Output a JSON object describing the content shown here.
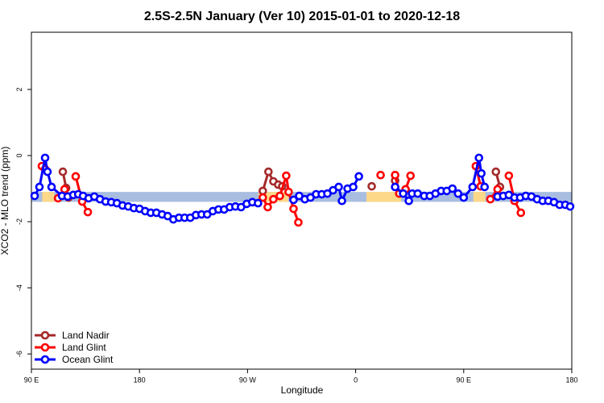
{
  "chart_data": {
    "type": "line",
    "title": "2.5S-2.5N January (Ver 10)   2015-01-01 to 2020-12-18",
    "xlabel": "Longitude",
    "ylabel": "XCO2 - MLO trend (ppm)",
    "xlim": [
      90,
      540
    ],
    "ylim": [
      -6.46,
      3.73
    ],
    "xticks": [
      {
        "value": 90,
        "label": "90 E"
      },
      180,
      {
        "value": 270,
        "label": "90 W"
      },
      {
        "value": 360,
        "label": "0"
      },
      {
        "value": 450,
        "label": "90 E"
      },
      {
        "value": 540,
        "label": "180"
      }
    ],
    "yticks": [
      2,
      0,
      -2,
      -4,
      -6
    ],
    "legend": "bottom-left",
    "bands": [
      {
        "color": "#a8bde0",
        "x": [
          90,
          540
        ],
        "y": [
          -1.4,
          -1.1
        ]
      },
      {
        "color": "#fdd888",
        "x": [
          99,
          109
        ],
        "y": [
          -1.4,
          -1.1
        ]
      },
      {
        "color": "#fdd888",
        "x": [
          279,
          304
        ],
        "y": [
          -1.4,
          -1.1
        ]
      },
      {
        "color": "#fdd888",
        "x": [
          369,
          398
        ],
        "y": [
          -1.4,
          -1.1
        ]
      },
      {
        "color": "#fdd888",
        "x": [
          458,
          468
        ],
        "y": [
          -1.4,
          -1.1
        ]
      }
    ],
    "series": [
      {
        "name": "Land Nadir",
        "color": "#a52a2a",
        "x": [
          116.2,
          118.9,
          120.9,
          null,
          282.7,
          287.4,
          291.5,
          295.5,
          298.9,
          null,
          373.4,
          null,
          392.9,
          null,
          476.8,
          480.2
        ],
        "values": [
          -0.49,
          -0.98,
          -1.27,
          null,
          -1.07,
          -0.49,
          -0.78,
          -0.88,
          -0.93,
          null,
          -0.93,
          null,
          -0.76,
          null,
          -0.49,
          -0.95
        ]
      },
      {
        "name": "Land Glint",
        "color": "#ff0000",
        "x": [
          98.7,
          101.4,
          null,
          112.2,
          117.6,
          null,
          126.9,
          132.3,
          137.0,
          null,
          282.7,
          286.8,
          291.5,
          296.9,
          302.2,
          304.2,
          308.3,
          312.3,
          null,
          380.8,
          null,
          392.9,
          396.3,
          401.6,
          405.7,
          null,
          460.1,
          464.1,
          null,
          472.2,
          478.2,
          null,
          487.6,
          492.3,
          497.6
        ],
        "values": [
          -0.32,
          -0.41,
          null,
          -1.29,
          -1.02,
          null,
          -0.63,
          -1.39,
          -1.71,
          null,
          -1.27,
          -1.56,
          -1.32,
          -1.22,
          -0.61,
          -1.1,
          -1.61,
          -2.02,
          null,
          -0.59,
          null,
          -0.59,
          -1.15,
          -1.02,
          -0.61,
          null,
          -0.32,
          -0.93,
          null,
          -1.32,
          -1.02,
          null,
          -0.61,
          -1.37,
          -1.73
        ]
      },
      {
        "name": "Ocean Glint",
        "color": "#0000ff",
        "x": [
          92.7,
          96.7,
          101.4,
          103.4,
          106.8,
          115.5,
          120.2,
          124.9,
          129.0,
          133.0,
          137.7,
          142.4,
          147.1,
          151.8,
          156.5,
          161.2,
          165.9,
          170.6,
          175.3,
          180.0,
          184.7,
          189.4,
          194.1,
          198.8,
          203.5,
          208.2,
          212.9,
          217.6,
          222.3,
          227.0,
          231.7,
          236.4,
          241.1,
          245.8,
          250.5,
          255.2,
          259.9,
          264.6,
          269.3,
          274.0,
          278.7,
          null,
          308.3,
          313.0,
          317.7,
          322.4,
          327.1,
          331.8,
          336.5,
          341.2,
          345.9,
          348.6,
          353.3,
          358.0,
          362.7,
          null,
          392.9,
          399.6,
          404.3,
          407.0,
          411.7,
          417.1,
          421.8,
          426.5,
          431.2,
          435.9,
          440.6,
          445.3,
          450.0,
          457.4,
          462.7,
          464.7,
          467.4,
          null,
          478.2,
          482.9,
          487.6,
          492.3,
          497.0,
          501.7,
          506.4,
          511.1,
          515.8,
          520.5,
          525.2,
          529.9,
          534.6,
          538.6
        ],
        "values": [
          -1.22,
          -0.95,
          -0.07,
          -0.49,
          -0.95,
          -1.22,
          -1.24,
          -1.19,
          -1.17,
          -1.22,
          -1.29,
          -1.24,
          -1.32,
          -1.39,
          -1.41,
          -1.44,
          -1.51,
          -1.54,
          -1.59,
          -1.61,
          -1.68,
          -1.73,
          -1.73,
          -1.78,
          -1.83,
          -1.93,
          -1.88,
          -1.88,
          -1.88,
          -1.8,
          -1.78,
          -1.78,
          -1.68,
          -1.63,
          -1.63,
          -1.56,
          -1.54,
          -1.56,
          -1.46,
          -1.41,
          -1.44,
          null,
          -1.34,
          -1.22,
          -1.32,
          -1.27,
          -1.17,
          -1.17,
          -1.15,
          -1.05,
          -0.95,
          -1.37,
          -1.0,
          -0.95,
          -0.63,
          null,
          -0.95,
          -1.15,
          -1.37,
          -1.15,
          -1.15,
          -1.22,
          -1.22,
          -1.15,
          -1.07,
          -1.07,
          -1.0,
          -1.15,
          -1.27,
          -0.95,
          -0.07,
          -0.54,
          -0.95,
          null,
          -1.24,
          -1.22,
          -1.19,
          -1.27,
          -1.27,
          -1.22,
          -1.24,
          -1.32,
          -1.37,
          -1.37,
          -1.41,
          -1.49,
          -1.49,
          -1.54
        ]
      }
    ]
  }
}
